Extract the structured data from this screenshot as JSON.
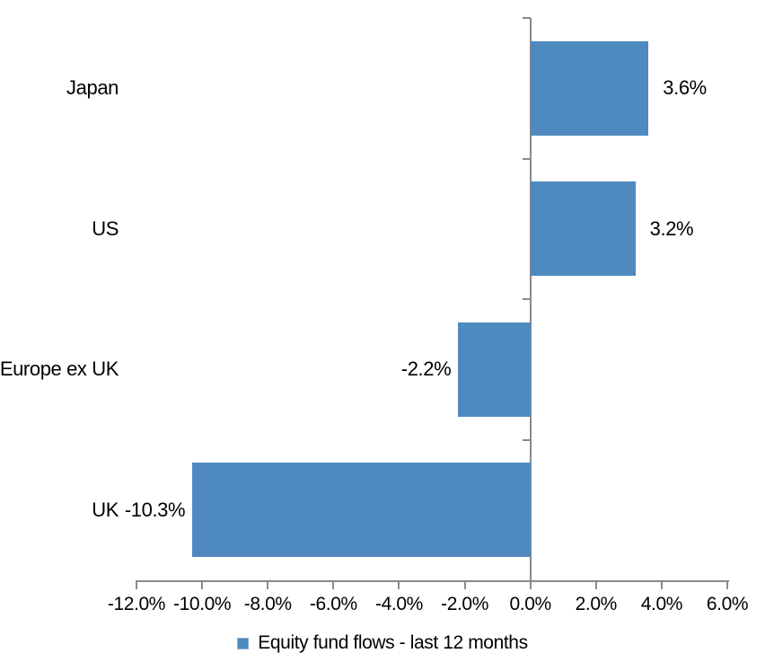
{
  "chart_data": {
    "type": "bar",
    "orientation": "horizontal",
    "title": "",
    "categories": [
      "Japan",
      "US",
      "Europe ex UK",
      "UK"
    ],
    "values": [
      3.6,
      3.2,
      -2.2,
      -10.3
    ],
    "data_labels": [
      "3.6%",
      "3.2%",
      "-2.2%",
      "-10.3%"
    ],
    "series_name": "Equity fund flows - last 12 months",
    "xlim": [
      -12,
      6
    ],
    "x_ticks": [
      -12,
      -10,
      -8,
      -6,
      -4,
      -2,
      0,
      2,
      4,
      6
    ],
    "x_tick_labels": [
      "-12.0%",
      "-10.0%",
      "-8.0%",
      "-6.0%",
      "-4.0%",
      "-2.0%",
      "0.0%",
      "2.0%",
      "4.0%",
      "6.0%"
    ],
    "grid": false,
    "legend_position": "bottom",
    "bar_color": "#4e8abf",
    "axis_color": "#8a8a8a",
    "text_color": "#000000"
  },
  "legend": {
    "label": "Equity fund flows - last 12 months"
  }
}
